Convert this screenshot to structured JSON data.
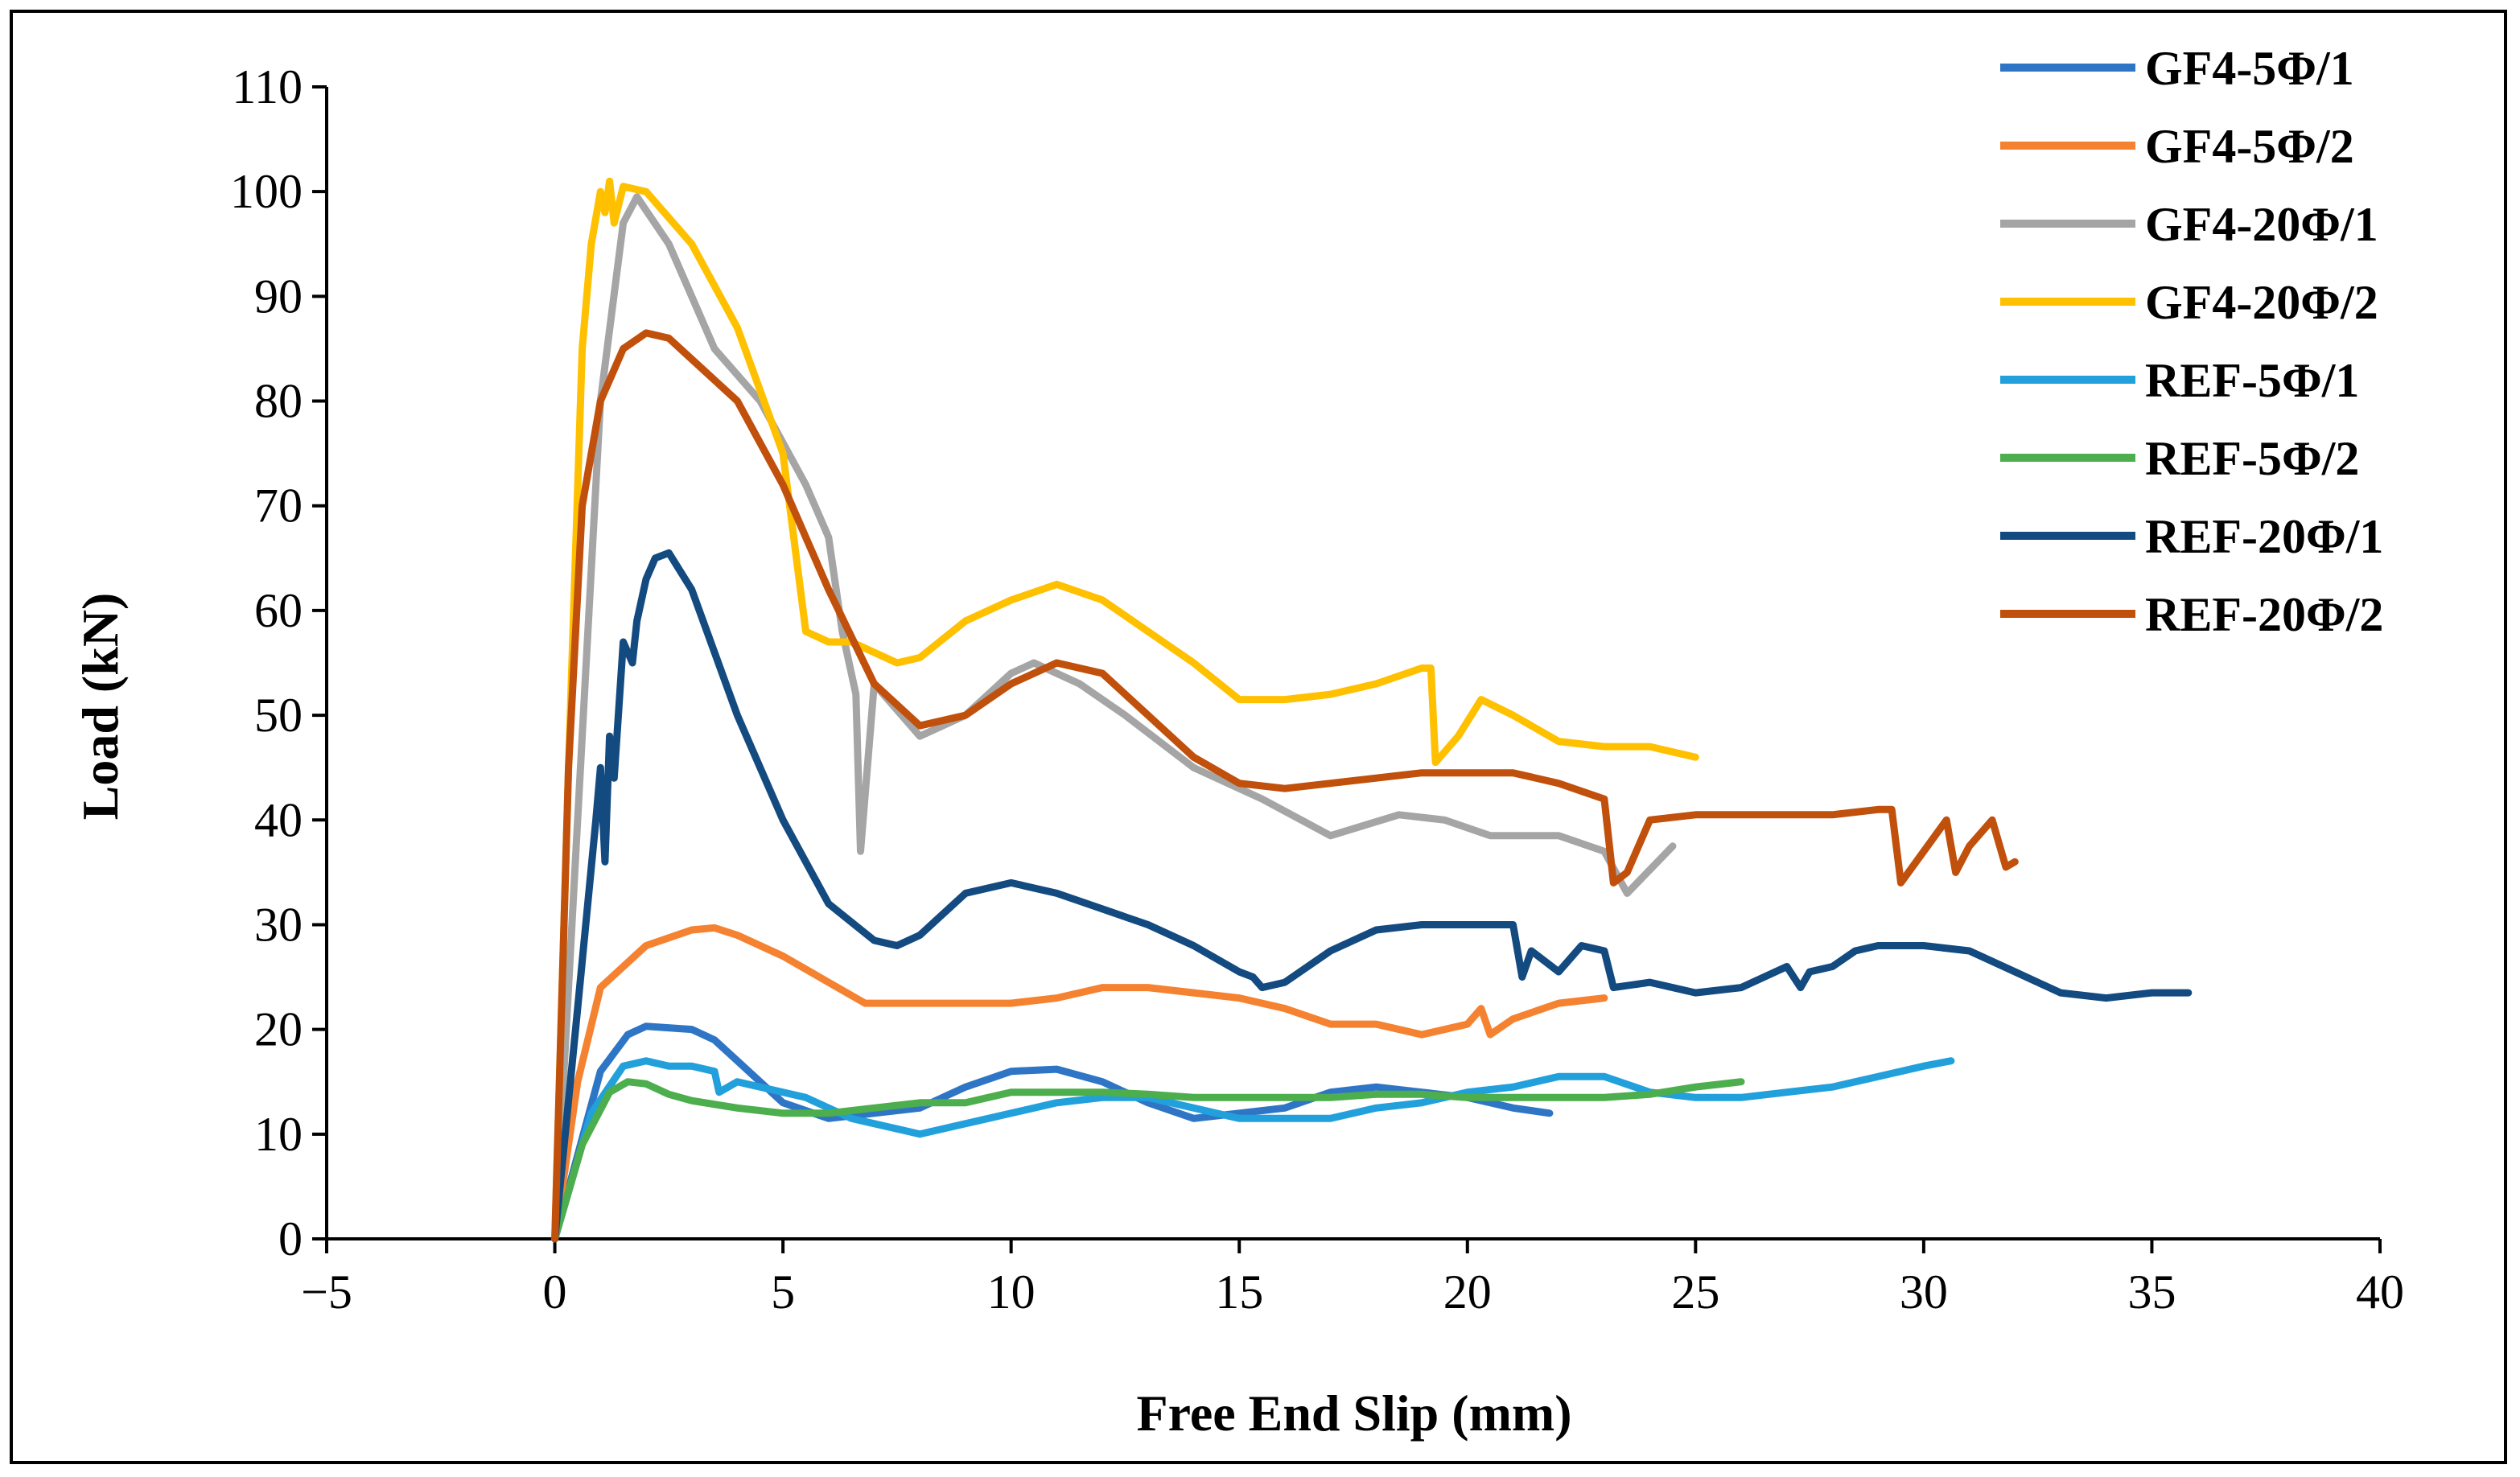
{
  "chart_data": {
    "type": "line",
    "title": "",
    "xlabel": "Free End Slip (mm)",
    "ylabel": "Load (kN)",
    "xlim": [
      -5,
      40
    ],
    "ylim": [
      0,
      110
    ],
    "xticks": [
      -5,
      0,
      5,
      10,
      15,
      20,
      25,
      30,
      35,
      40
    ],
    "yticks": [
      0,
      10,
      20,
      30,
      40,
      50,
      60,
      70,
      80,
      90,
      100,
      110
    ],
    "xtick_labels": [
      "−5",
      "0",
      "5",
      "10",
      "15",
      "20",
      "25",
      "30",
      "35",
      "40"
    ],
    "ytick_labels": [
      "0",
      "10",
      "20",
      "30",
      "40",
      "50",
      "60",
      "70",
      "80",
      "90",
      "100",
      "110"
    ],
    "grid": false,
    "legend_position": "top-right",
    "series": [
      {
        "name": "GF4-5Φ/1",
        "color": "#2E75C6",
        "x": [
          0,
          1.0,
          1.6,
          2.0,
          3.0,
          3.5,
          4.0,
          5.0,
          6.0,
          7.0,
          8.0,
          9.0,
          10.0,
          11.0,
          12.0,
          13.0,
          14.0,
          15.0,
          16.0,
          17.0,
          18.0,
          19.0,
          20.0,
          21.0,
          21.8
        ],
        "y": [
          0,
          16,
          19.5,
          20.3,
          20,
          19,
          17,
          13,
          11.5,
          12,
          12.5,
          14.5,
          16,
          16.2,
          15,
          13,
          11.5,
          12,
          12.5,
          14,
          14.5,
          14,
          13.5,
          12.5,
          12
        ]
      },
      {
        "name": "GF4-5Φ/2",
        "color": "#F58230",
        "x": [
          0,
          0.5,
          1.0,
          2.0,
          3.0,
          3.5,
          4.0,
          5.0,
          6.0,
          6.8,
          8.0,
          9.0,
          10.0,
          11.0,
          12.0,
          13.0,
          14.0,
          15.0,
          16.0,
          17.0,
          18.0,
          19.0,
          20.0,
          20.3,
          20.5,
          21.0,
          22.0,
          23.0
        ],
        "y": [
          0,
          15,
          24,
          28,
          29.5,
          29.7,
          29,
          27,
          24.5,
          22.5,
          22.5,
          22.5,
          22.5,
          23,
          24,
          24,
          23.5,
          23,
          22,
          20.5,
          20.5,
          19.5,
          20.5,
          22,
          19.5,
          21,
          22.5,
          23
        ]
      },
      {
        "name": "GF4-20Φ/1",
        "color": "#A5A5A5",
        "x": [
          0,
          0.5,
          1.0,
          1.5,
          1.8,
          2.5,
          3.0,
          3.5,
          4.5,
          5.5,
          6.0,
          6.3,
          6.6,
          6.7,
          7.0,
          8.0,
          9.0,
          10.0,
          10.5,
          11.5,
          12.5,
          14.0,
          15.5,
          17.0,
          18.5,
          19.5,
          20.5,
          22.0,
          23.0,
          23.5,
          24.5
        ],
        "y": [
          0,
          40,
          80,
          97,
          99.5,
          95,
          90,
          85,
          80,
          72,
          67,
          58,
          52,
          37,
          53,
          48,
          50,
          54,
          55,
          53,
          50,
          45,
          42,
          38.5,
          40.5,
          40,
          38.5,
          38.5,
          37,
          33,
          37.5
        ]
      },
      {
        "name": "GF4-20Φ/2",
        "color": "#FFC000",
        "x": [
          0,
          0.3,
          0.6,
          0.8,
          1.0,
          1.1,
          1.2,
          1.3,
          1.5,
          2.0,
          3.0,
          4.0,
          5.0,
          5.5,
          6.0,
          6.5,
          7.0,
          7.5,
          8.0,
          9.0,
          10.0,
          11.0,
          12.0,
          13.0,
          14.0,
          15.0,
          16.0,
          17.0,
          18.0,
          19.0,
          19.2,
          19.3,
          19.8,
          20.3,
          21.0,
          22.0,
          23.0,
          24.0,
          25.0
        ],
        "y": [
          0,
          45,
          85,
          95,
          100,
          98,
          101,
          97,
          100.5,
          100,
          95,
          87,
          75,
          58,
          57,
          57,
          56,
          55,
          55.5,
          59,
          61,
          62.5,
          61,
          58,
          55,
          51.5,
          51.5,
          52,
          53,
          54.5,
          54.5,
          45.5,
          48,
          51.5,
          50,
          47.5,
          47,
          47,
          46
        ]
      },
      {
        "name": "REF-5Φ/1",
        "color": "#21A0DC",
        "x": [
          0,
          0.8,
          1.5,
          2.0,
          2.5,
          3.0,
          3.5,
          3.6,
          4.0,
          4.5,
          5.5,
          6.5,
          7.5,
          8.0,
          9.0,
          10.0,
          11.0,
          12.0,
          13.0,
          14.0,
          15.0,
          16.0,
          17.0,
          18.0,
          19.0,
          20.0,
          21.0,
          22.0,
          23.0,
          24.0,
          25.0,
          26.0,
          27.0,
          28.0,
          29.0,
          30.0,
          30.6
        ],
        "y": [
          0,
          12,
          16.5,
          17,
          16.5,
          16.5,
          16,
          14,
          15,
          14.5,
          13.5,
          11.5,
          10.5,
          10,
          11,
          12,
          13,
          13.5,
          13.5,
          12.5,
          11.5,
          11.5,
          11.5,
          12.5,
          13,
          14,
          14.5,
          15.5,
          15.5,
          14,
          13.5,
          13.5,
          14,
          14.5,
          15.5,
          16.5,
          17
        ]
      },
      {
        "name": "REF-5Φ/2",
        "color": "#4CAE4C",
        "x": [
          0,
          0.6,
          1.2,
          1.6,
          2.0,
          2.5,
          3.0,
          4.0,
          5.0,
          6.0,
          7.0,
          8.0,
          9.0,
          10.0,
          11.0,
          12.0,
          13.0,
          14.0,
          15.0,
          16.0,
          17.0,
          18.0,
          19.0,
          20.0,
          21.0,
          22.0,
          23.0,
          24.0,
          25.0,
          26.0
        ],
        "y": [
          0,
          9,
          14,
          15,
          14.8,
          13.8,
          13.2,
          12.5,
          12,
          12,
          12.5,
          13,
          13,
          14,
          14,
          14,
          13.8,
          13.5,
          13.5,
          13.5,
          13.5,
          13.8,
          13.8,
          13.5,
          13.5,
          13.5,
          13.5,
          13.8,
          14.5,
          15
        ]
      },
      {
        "name": "REF-20Φ/1",
        "color": "#134A80",
        "x": [
          0,
          0.5,
          0.9,
          1.0,
          1.1,
          1.2,
          1.3,
          1.5,
          1.7,
          1.8,
          1.9,
          2.0,
          2.2,
          2.5,
          3.0,
          4.0,
          5.0,
          6.0,
          7.0,
          7.5,
          8.0,
          9.0,
          10.0,
          11.0,
          12.0,
          13.0,
          14.0,
          15.0,
          15.3,
          15.5,
          16.0,
          17.0,
          18.0,
          19.0,
          20.0,
          21.0,
          21.2,
          21.4,
          22.0,
          22.5,
          23.0,
          23.2,
          24.0,
          25.0,
          26.0,
          27.0,
          27.3,
          27.5,
          28.0,
          28.5,
          29.0,
          30.0,
          31.0,
          32.0,
          33.0,
          34.0,
          35.0,
          35.8
        ],
        "y": [
          0,
          22,
          40,
          45,
          36,
          48,
          44,
          57,
          55,
          59,
          61,
          63,
          65,
          65.5,
          62,
          50,
          40,
          32,
          28.5,
          28,
          29,
          33,
          34,
          33,
          31.5,
          30,
          28,
          25.5,
          25,
          24,
          24.5,
          27.5,
          29.5,
          30,
          30,
          30,
          25,
          27.5,
          25.5,
          28,
          27.5,
          24,
          24.5,
          23.5,
          24,
          26,
          24,
          25.5,
          26,
          27.5,
          28,
          28,
          27.5,
          25.5,
          23.5,
          23,
          23.5,
          23.5
        ]
      },
      {
        "name": "REF-20Φ/2",
        "color": "#C0500B",
        "x": [
          0,
          0.3,
          0.6,
          1.0,
          1.5,
          2.0,
          2.5,
          3.0,
          4.0,
          5.0,
          6.0,
          7.0,
          8.0,
          9.0,
          10.0,
          11.0,
          12.0,
          13.0,
          14.0,
          15.0,
          16.0,
          17.0,
          18.0,
          19.0,
          20.0,
          21.0,
          22.0,
          23.0,
          23.2,
          23.5,
          23.8,
          24.0,
          25.0,
          26.0,
          27.0,
          28.0,
          29.0,
          29.3,
          29.5,
          30.0,
          30.5,
          30.7,
          31.0,
          31.5,
          31.8,
          32.0
        ],
        "y": [
          0,
          45,
          70,
          80,
          85,
          86.5,
          86,
          84,
          80,
          72,
          62,
          53,
          49,
          50,
          53,
          55,
          54,
          50,
          46,
          43.5,
          43,
          43.5,
          44,
          44.5,
          44.5,
          44.5,
          43.5,
          42,
          34,
          35,
          38,
          40,
          40.5,
          40.5,
          40.5,
          40.5,
          41,
          41,
          34,
          37,
          40,
          35,
          37.5,
          40,
          35.5,
          36
        ]
      }
    ]
  }
}
